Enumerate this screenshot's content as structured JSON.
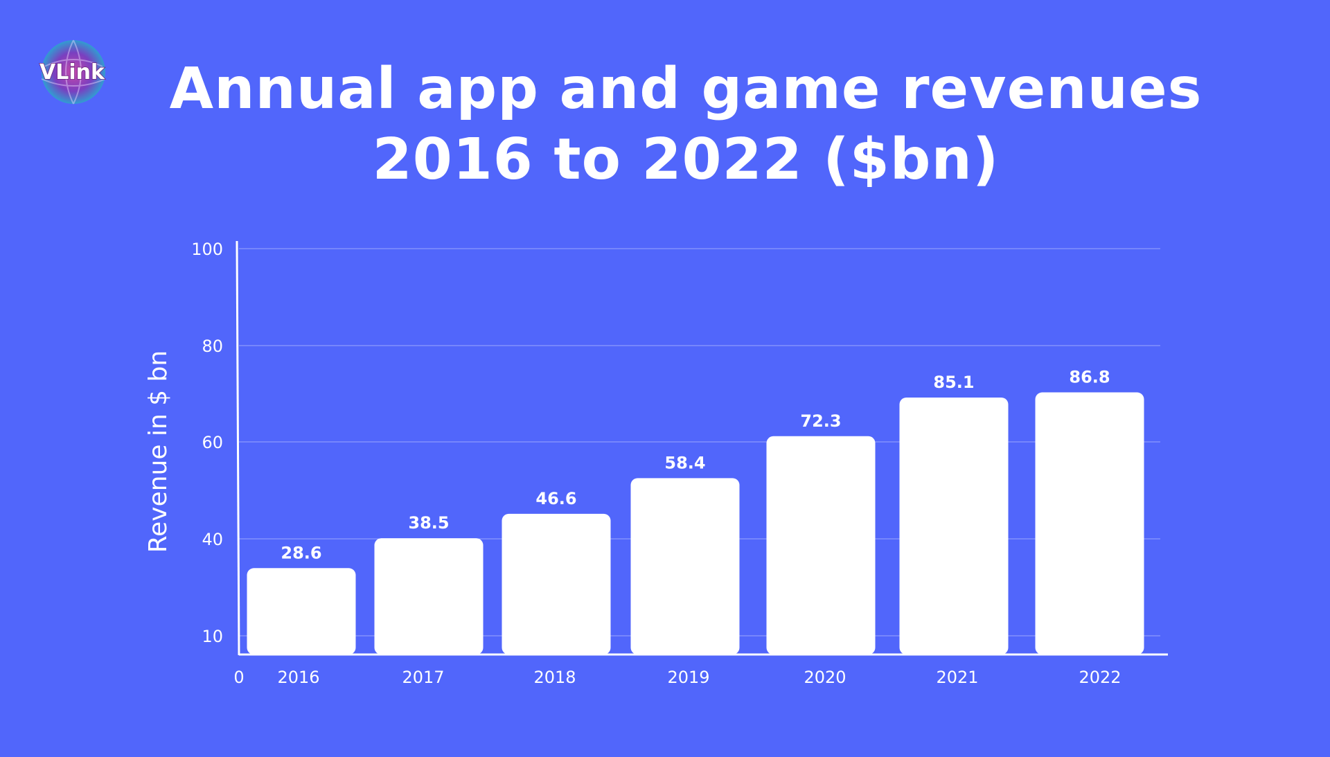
{
  "brand": {
    "logo_text": "VLink",
    "logo_icon": "globe-logo"
  },
  "colors": {
    "background": "#5166fb",
    "bars": "#ffffff",
    "text": "#ffffff",
    "grid": "#9aa6fd"
  },
  "chart_data": {
    "type": "bar",
    "title": "Annual app and game revenues 2016 to 2022 ($bn)",
    "ylabel": "Revenue in $ bn",
    "xlabel": "",
    "categories": [
      "2016",
      "2017",
      "2018",
      "2019",
      "2020",
      "2021",
      "2022"
    ],
    "values": [
      28.6,
      38.5,
      46.6,
      58.4,
      72.3,
      85.1,
      86.8
    ],
    "data_labels": [
      "28.6",
      "38.5",
      "46.6",
      "58.4",
      "72.3",
      "85.1",
      "86.8"
    ],
    "y_ticks": [
      "10",
      "40",
      "60",
      "80",
      "100"
    ],
    "x_origin_label": "0",
    "grid": true,
    "legend": "none"
  }
}
